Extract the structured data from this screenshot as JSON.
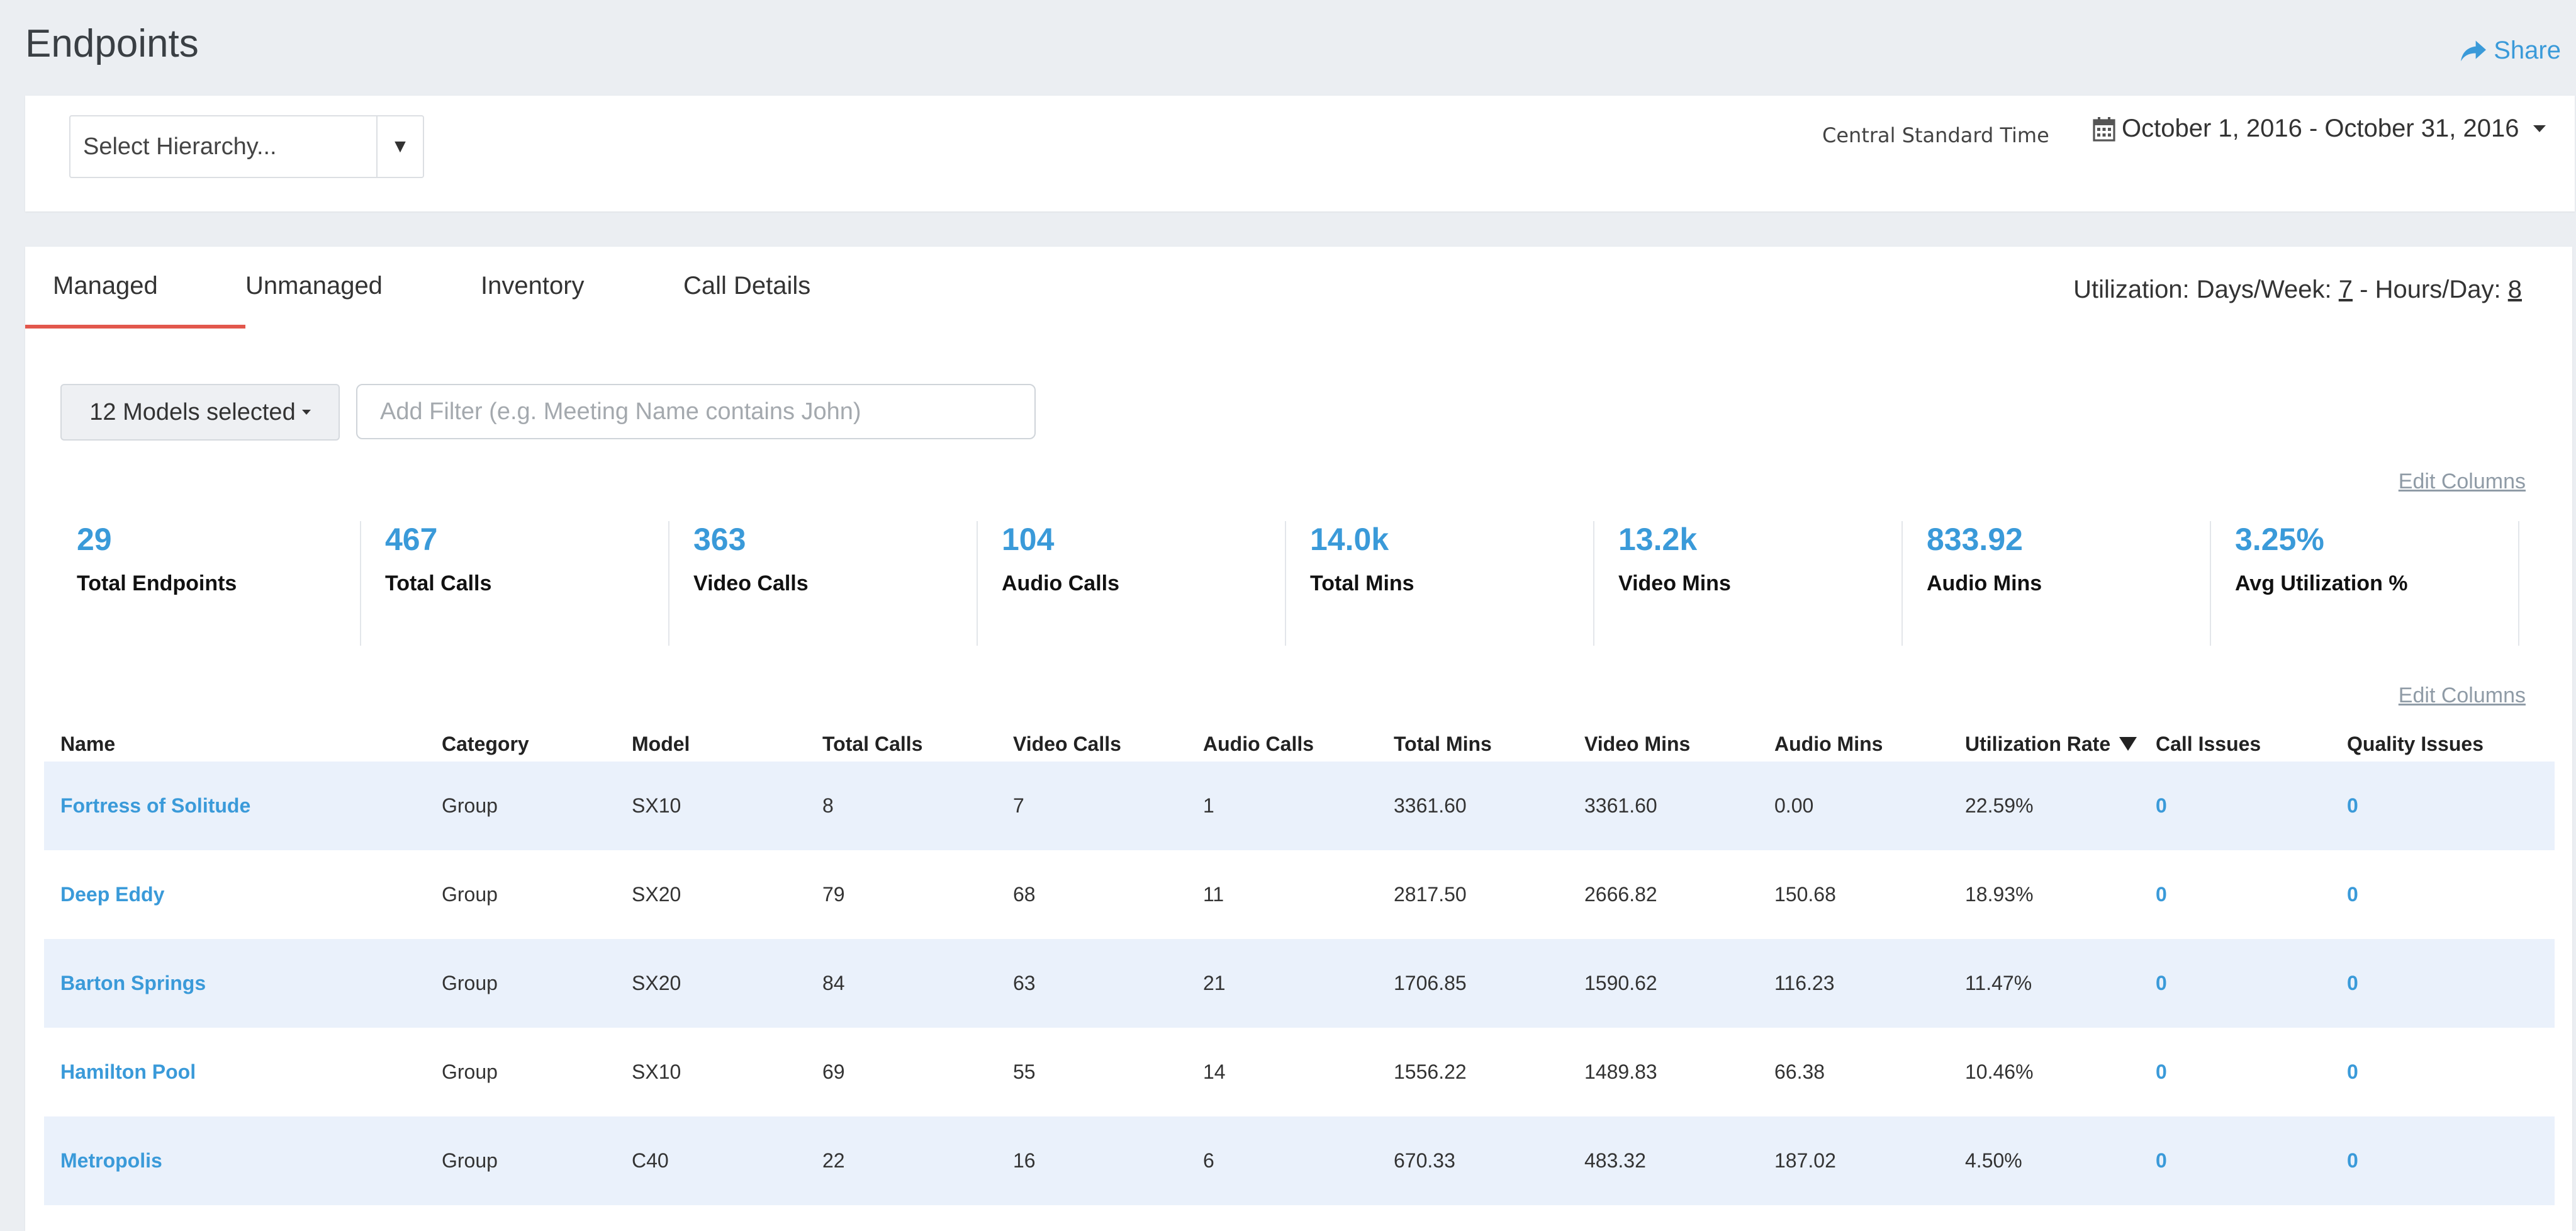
{
  "page": {
    "title": "Endpoints",
    "share_label": "Share"
  },
  "topbar": {
    "hierarchy_placeholder": "Select Hierarchy...",
    "hierarchy_toggle": "▼",
    "timezone": "Central Standard Time",
    "date_range": "October 1, 2016 - October 31, 2016"
  },
  "tabs": [
    {
      "label": "Managed",
      "active": true
    },
    {
      "label": "Unmanaged",
      "active": false
    },
    {
      "label": "Inventory",
      "active": false
    },
    {
      "label": "Call Details",
      "active": false
    }
  ],
  "utilization": {
    "prefix": "Utilization: Days/Week: ",
    "days": "7",
    "mid": " - Hours/Day: ",
    "hours": "8"
  },
  "filters": {
    "models_label": "12 Models selected",
    "filter_placeholder": "Add Filter (e.g. Meeting Name contains John)",
    "filter_value": ""
  },
  "edit_columns_label": "Edit Columns",
  "stats": [
    {
      "value": "29",
      "label": "Total Endpoints"
    },
    {
      "value": "467",
      "label": "Total Calls"
    },
    {
      "value": "363",
      "label": "Video Calls"
    },
    {
      "value": "104",
      "label": "Audio Calls"
    },
    {
      "value": "14.0k",
      "label": "Total Mins"
    },
    {
      "value": "13.2k",
      "label": "Video Mins"
    },
    {
      "value": "833.92",
      "label": "Audio Mins"
    },
    {
      "value": "3.25%",
      "label": "Avg Utilization %"
    }
  ],
  "table": {
    "columns": [
      "Name",
      "Category",
      "Model",
      "Total Calls",
      "Video Calls",
      "Audio Calls",
      "Total Mins",
      "Video Mins",
      "Audio Mins",
      "Utilization Rate",
      "Call Issues",
      "Quality Issues"
    ],
    "sort_column": "Utilization Rate",
    "rows": [
      [
        "Fortress of Solitude",
        "Group",
        "SX10",
        "8",
        "7",
        "1",
        "3361.60",
        "3361.60",
        "0.00",
        "22.59%",
        "0",
        "0"
      ],
      [
        "Deep Eddy",
        "Group",
        "SX20",
        "79",
        "68",
        "11",
        "2817.50",
        "2666.82",
        "150.68",
        "18.93%",
        "0",
        "0"
      ],
      [
        "Barton Springs",
        "Group",
        "SX20",
        "84",
        "63",
        "21",
        "1706.85",
        "1590.62",
        "116.23",
        "11.47%",
        "0",
        "0"
      ],
      [
        "Hamilton Pool",
        "Group",
        "SX10",
        "69",
        "55",
        "14",
        "1556.22",
        "1489.83",
        "66.38",
        "10.46%",
        "0",
        "0"
      ],
      [
        "Metropolis",
        "Group",
        "C40",
        "22",
        "16",
        "6",
        "670.33",
        "483.32",
        "187.02",
        "4.50%",
        "0",
        "0"
      ]
    ]
  },
  "colors": {
    "accent": "#3a9ad9",
    "tab_underline": "#e2574c",
    "row_alt": "#eaf1fb",
    "background": "#ebeef2"
  }
}
